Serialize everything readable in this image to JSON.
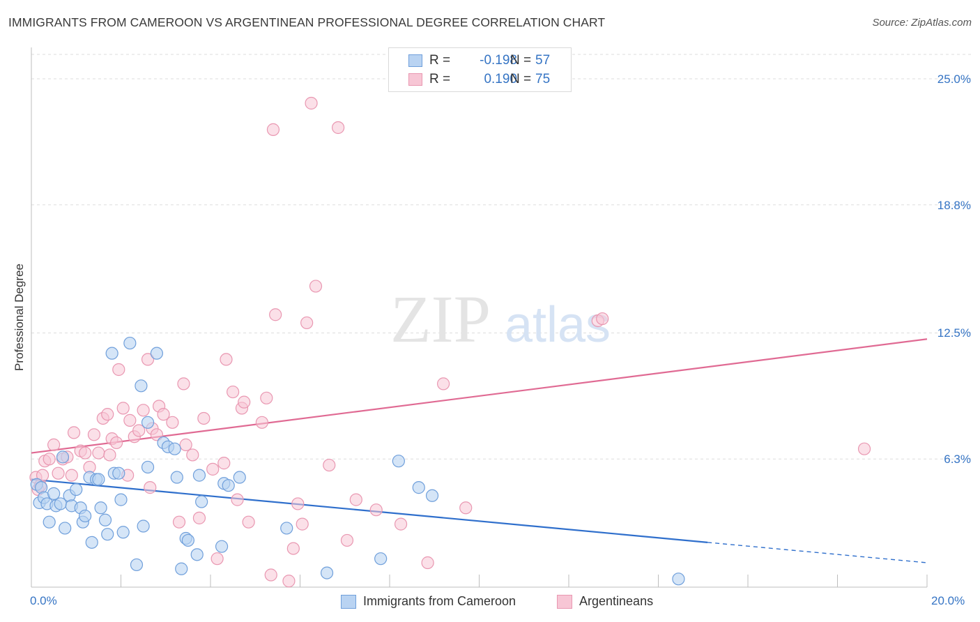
{
  "title": "IMMIGRANTS FROM CAMEROON VS ARGENTINEAN PROFESSIONAL DEGREE CORRELATION CHART",
  "source": "Source: ZipAtlas.com",
  "watermark": {
    "zip": "ZIP",
    "atlas": "atlas"
  },
  "legend": {
    "rows": [
      {
        "r_label": "R =",
        "r_value": "-0.198",
        "n_label": "N =",
        "n_value": "57"
      },
      {
        "r_label": "R =",
        "r_value": "0.190",
        "n_label": "N =",
        "n_value": "75"
      }
    ]
  },
  "bottom_legend": [
    {
      "label": "Immigrants from Cameroon"
    },
    {
      "label": "Argentineans"
    }
  ],
  "colors": {
    "blue_fill": "#b9d3f2",
    "blue_stroke": "#6f9fdb",
    "blue_line": "#2f6fcc",
    "pink_fill": "#f7c6d5",
    "pink_stroke": "#e997b1",
    "pink_line": "#e06a93",
    "tick_text": "#3574c4",
    "grid": "#dddddd"
  },
  "chart_data": {
    "type": "scatter",
    "title": "IMMIGRANTS FROM CAMEROON VS ARGENTINEAN PROFESSIONAL DEGREE CORRELATION CHART",
    "xlabel": "",
    "ylabel": "Professional Degree",
    "xlim": [
      0,
      20
    ],
    "ylim": [
      0,
      26.2
    ],
    "x_tick_labels": [
      "0.0%",
      "20.0%"
    ],
    "y_ticks": [
      6.3,
      12.5,
      18.8,
      25.0
    ],
    "y_tick_labels": [
      "6.3%",
      "12.5%",
      "18.8%",
      "25.0%"
    ],
    "grid": "horizontal dashed",
    "legend_position": "top-center",
    "series": [
      {
        "name": "Immigrants from Cameroon",
        "color": "#6f9fdb",
        "trend": {
          "x": [
            0,
            15.1
          ],
          "y": [
            5.3,
            2.2
          ],
          "dashed_extension": {
            "x": [
              15.1,
              20
            ],
            "y": [
              2.2,
              1.2
            ]
          }
        },
        "points": [
          [
            0.12,
            5.05
          ],
          [
            0.18,
            4.15
          ],
          [
            0.22,
            4.9
          ],
          [
            0.28,
            4.4
          ],
          [
            0.35,
            4.1
          ],
          [
            0.4,
            3.2
          ],
          [
            0.5,
            4.6
          ],
          [
            0.55,
            4.0
          ],
          [
            0.65,
            4.1
          ],
          [
            0.7,
            6.4
          ],
          [
            0.75,
            2.9
          ],
          [
            0.85,
            4.5
          ],
          [
            0.9,
            4.0
          ],
          [
            1.0,
            4.8
          ],
          [
            1.1,
            3.9
          ],
          [
            1.15,
            3.2
          ],
          [
            1.2,
            3.5
          ],
          [
            1.3,
            5.4
          ],
          [
            1.35,
            2.2
          ],
          [
            1.45,
            5.3
          ],
          [
            1.5,
            5.3
          ],
          [
            1.55,
            3.9
          ],
          [
            1.65,
            3.3
          ],
          [
            1.7,
            2.6
          ],
          [
            1.8,
            11.5
          ],
          [
            1.85,
            5.6
          ],
          [
            1.95,
            5.6
          ],
          [
            2.0,
            4.3
          ],
          [
            2.05,
            2.7
          ],
          [
            2.2,
            12.0
          ],
          [
            2.35,
            1.1
          ],
          [
            2.45,
            9.9
          ],
          [
            2.5,
            3.0
          ],
          [
            2.6,
            8.1
          ],
          [
            2.6,
            5.9
          ],
          [
            2.8,
            11.5
          ],
          [
            2.95,
            7.1
          ],
          [
            3.05,
            6.9
          ],
          [
            3.2,
            6.8
          ],
          [
            3.25,
            5.4
          ],
          [
            3.35,
            0.9
          ],
          [
            3.45,
            2.4
          ],
          [
            3.5,
            2.3
          ],
          [
            3.7,
            1.6
          ],
          [
            3.75,
            5.5
          ],
          [
            3.8,
            4.2
          ],
          [
            4.25,
            2.0
          ],
          [
            4.3,
            5.1
          ],
          [
            4.4,
            5.0
          ],
          [
            4.65,
            5.4
          ],
          [
            5.7,
            2.9
          ],
          [
            6.6,
            0.7
          ],
          [
            7.8,
            1.4
          ],
          [
            8.2,
            6.2
          ],
          [
            8.65,
            4.9
          ],
          [
            8.95,
            4.5
          ],
          [
            14.45,
            0.4
          ]
        ]
      },
      {
        "name": "Argentineans",
        "color": "#e997b1",
        "trend": {
          "x": [
            0,
            20
          ],
          "y": [
            6.6,
            12.2
          ]
        },
        "points": [
          [
            0.1,
            5.4
          ],
          [
            0.15,
            4.8
          ],
          [
            0.2,
            5.0
          ],
          [
            0.25,
            5.5
          ],
          [
            0.3,
            6.2
          ],
          [
            0.4,
            6.3
          ],
          [
            0.5,
            7.0
          ],
          [
            0.6,
            5.6
          ],
          [
            0.7,
            6.3
          ],
          [
            0.8,
            6.4
          ],
          [
            0.9,
            5.5
          ],
          [
            0.95,
            7.6
          ],
          [
            1.1,
            6.7
          ],
          [
            1.2,
            6.6
          ],
          [
            1.3,
            5.9
          ],
          [
            1.4,
            7.5
          ],
          [
            1.5,
            6.6
          ],
          [
            1.6,
            8.3
          ],
          [
            1.7,
            8.5
          ],
          [
            1.75,
            6.5
          ],
          [
            1.8,
            7.3
          ],
          [
            1.9,
            7.1
          ],
          [
            1.95,
            10.7
          ],
          [
            2.05,
            8.8
          ],
          [
            2.15,
            5.5
          ],
          [
            2.2,
            8.2
          ],
          [
            2.3,
            7.4
          ],
          [
            2.4,
            7.7
          ],
          [
            2.5,
            8.7
          ],
          [
            2.6,
            11.2
          ],
          [
            2.65,
            4.9
          ],
          [
            2.7,
            7.8
          ],
          [
            2.8,
            7.5
          ],
          [
            2.85,
            8.9
          ],
          [
            2.95,
            8.5
          ],
          [
            3.15,
            8.1
          ],
          [
            3.3,
            3.2
          ],
          [
            3.4,
            10.0
          ],
          [
            3.45,
            7.0
          ],
          [
            3.6,
            6.5
          ],
          [
            3.75,
            3.4
          ],
          [
            3.85,
            8.3
          ],
          [
            4.05,
            5.8
          ],
          [
            4.15,
            1.4
          ],
          [
            4.3,
            6.1
          ],
          [
            4.35,
            11.2
          ],
          [
            4.5,
            9.6
          ],
          [
            4.6,
            4.3
          ],
          [
            4.7,
            8.8
          ],
          [
            4.75,
            9.1
          ],
          [
            4.85,
            3.2
          ],
          [
            5.15,
            8.1
          ],
          [
            5.25,
            9.3
          ],
          [
            5.4,
            22.5
          ],
          [
            5.35,
            0.6
          ],
          [
            5.45,
            13.4
          ],
          [
            5.75,
            0.3
          ],
          [
            5.85,
            1.9
          ],
          [
            5.95,
            4.1
          ],
          [
            6.05,
            3.1
          ],
          [
            6.15,
            13.0
          ],
          [
            6.25,
            23.8
          ],
          [
            6.35,
            14.8
          ],
          [
            6.65,
            6.0
          ],
          [
            6.85,
            22.6
          ],
          [
            7.05,
            2.3
          ],
          [
            7.25,
            4.3
          ],
          [
            7.7,
            3.8
          ],
          [
            8.25,
            3.1
          ],
          [
            8.85,
            1.2
          ],
          [
            9.2,
            10.0
          ],
          [
            9.7,
            3.9
          ],
          [
            12.65,
            13.1
          ],
          [
            12.75,
            13.2
          ],
          [
            18.6,
            6.8
          ]
        ]
      }
    ]
  }
}
